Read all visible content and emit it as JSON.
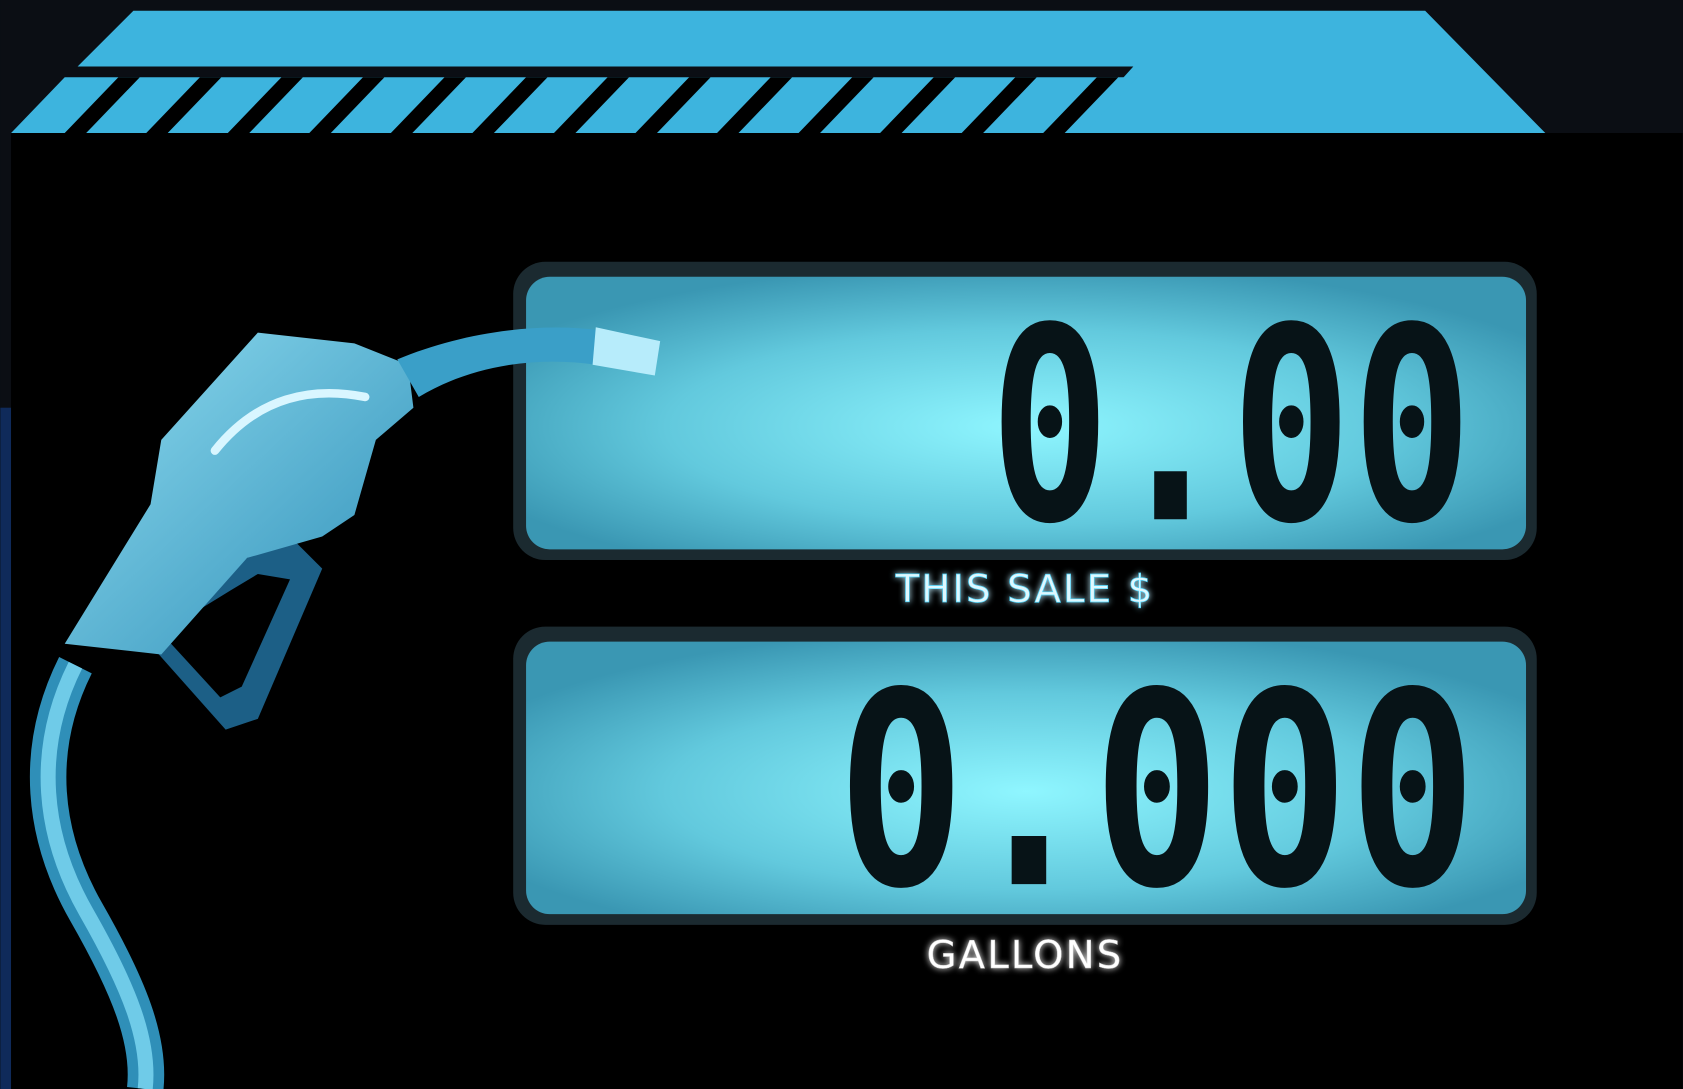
{
  "displays": [
    {
      "reading": "0.00",
      "label": "THIS SALE $"
    },
    {
      "reading": "0.000",
      "label": "GALLONS"
    }
  ]
}
